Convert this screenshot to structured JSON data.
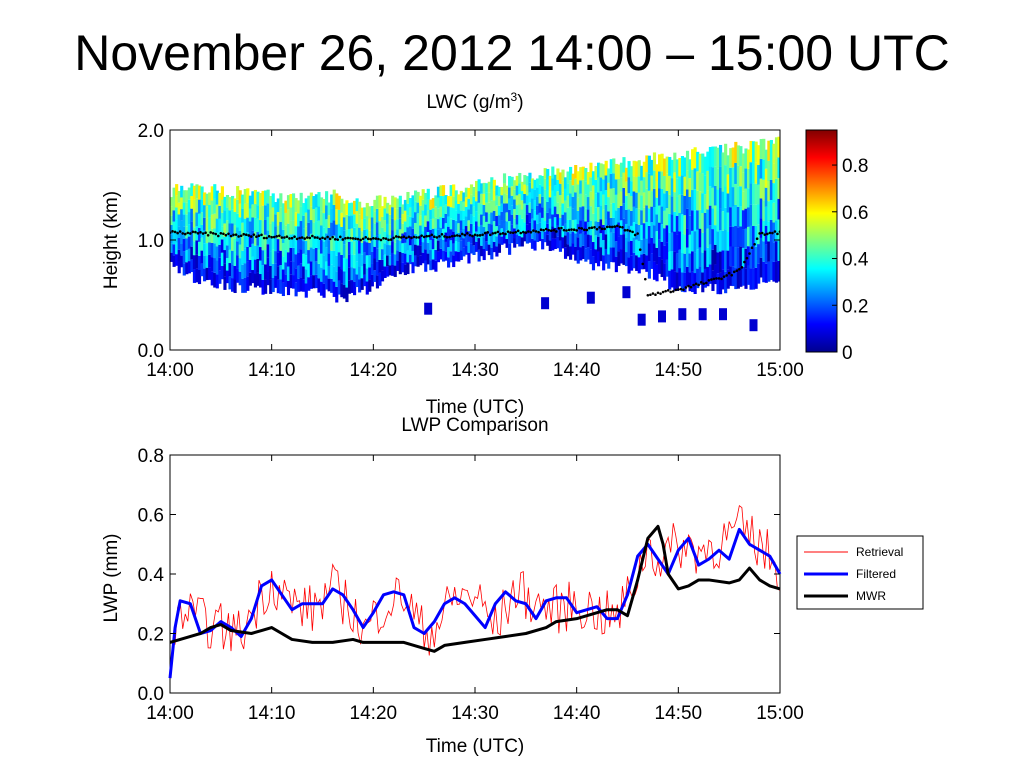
{
  "slide": {
    "title": "November 26, 2012 14:00 – 15:00 UTC"
  },
  "chart_data": [
    {
      "type": "heatmap",
      "title": "LWC (g/m3)",
      "title_main": "LWC (g/m",
      "title_sup": "3",
      "title_end": ")",
      "xlabel": "Time (UTC)",
      "ylabel": "Height (km)",
      "x_ticks": [
        "14:00",
        "14:10",
        "14:20",
        "14:30",
        "14:40",
        "14:50",
        "15:00"
      ],
      "y_ticks": [
        "0.0",
        "1.0",
        "2.0"
      ],
      "xlim": [
        0,
        60
      ],
      "ylim": [
        0,
        2
      ],
      "colorbar": {
        "ticks": [
          "0",
          "0.2",
          "0.4",
          "0.6",
          "0.8"
        ],
        "range": [
          0,
          0.95
        ],
        "colormap": "jet"
      },
      "cloud_top_km": [
        [
          0,
          1.45
        ],
        [
          2,
          1.48
        ],
        [
          5,
          1.45
        ],
        [
          8,
          1.42
        ],
        [
          12,
          1.38
        ],
        [
          16,
          1.4
        ],
        [
          18,
          1.35
        ],
        [
          21,
          1.35
        ],
        [
          24,
          1.4
        ],
        [
          27,
          1.45
        ],
        [
          30,
          1.5
        ],
        [
          33,
          1.55
        ],
        [
          36,
          1.6
        ],
        [
          39,
          1.62
        ],
        [
          42,
          1.68
        ],
        [
          45,
          1.72
        ],
        [
          48,
          1.75
        ],
        [
          51,
          1.78
        ],
        [
          54,
          1.82
        ],
        [
          57,
          1.85
        ],
        [
          60,
          1.9
        ]
      ],
      "cloud_base_km": [
        [
          0,
          0.75
        ],
        [
          3,
          0.62
        ],
        [
          6,
          0.58
        ],
        [
          9,
          0.55
        ],
        [
          12,
          0.52
        ],
        [
          15,
          0.5
        ],
        [
          17,
          0.47
        ],
        [
          19,
          0.55
        ],
        [
          22,
          0.7
        ],
        [
          25,
          0.75
        ],
        [
          28,
          0.8
        ],
        [
          31,
          0.85
        ],
        [
          34,
          0.95
        ],
        [
          37,
          0.95
        ],
        [
          40,
          0.8
        ],
        [
          43,
          0.75
        ],
        [
          45,
          0.75
        ],
        [
          47,
          0.7
        ],
        [
          49,
          0.6
        ],
        [
          52,
          0.55
        ],
        [
          55,
          0.55
        ],
        [
          58,
          0.6
        ],
        [
          60,
          0.6
        ]
      ],
      "mwr_base_km": [
        [
          0,
          1.07
        ],
        [
          5,
          1.05
        ],
        [
          10,
          1.03
        ],
        [
          15,
          1.02
        ],
        [
          20,
          1.01
        ],
        [
          25,
          1.03
        ],
        [
          30,
          1.05
        ],
        [
          35,
          1.08
        ],
        [
          40,
          1.1
        ],
        [
          44,
          1.12
        ],
        [
          46,
          1.05
        ],
        [
          47,
          0.5
        ],
        [
          50,
          0.55
        ],
        [
          53,
          0.62
        ],
        [
          56,
          0.72
        ],
        [
          58,
          1.05
        ],
        [
          60,
          1.07
        ]
      ]
    },
    {
      "type": "line",
      "title": "LWP Comparison",
      "xlabel": "Time (UTC)",
      "ylabel": "LWP (mm)",
      "x_ticks": [
        "14:00",
        "14:10",
        "14:20",
        "14:30",
        "14:40",
        "14:50",
        "15:00"
      ],
      "y_ticks": [
        "0.0",
        "0.2",
        "0.4",
        "0.6",
        "0.8"
      ],
      "xlim": [
        0,
        60
      ],
      "ylim": [
        0,
        0.8
      ],
      "legend": "right",
      "series": [
        {
          "name": "Retrieval",
          "color": "#ff0000",
          "points": [
            [
              0,
              0.05
            ],
            [
              1,
              0.28
            ],
            [
              3,
              0.24
            ],
            [
              5,
              0.22
            ],
            [
              7,
              0.2
            ],
            [
              9,
              0.33
            ],
            [
              10,
              0.38
            ],
            [
              12,
              0.3
            ],
            [
              14,
              0.28
            ],
            [
              16,
              0.35
            ],
            [
              18,
              0.28
            ],
            [
              19,
              0.2
            ],
            [
              21,
              0.3
            ],
            [
              23,
              0.33
            ],
            [
              25,
              0.2
            ],
            [
              26,
              0.22
            ],
            [
              28,
              0.32
            ],
            [
              30,
              0.33
            ],
            [
              32,
              0.22
            ],
            [
              34,
              0.35
            ],
            [
              36,
              0.3
            ],
            [
              38,
              0.28
            ],
            [
              40,
              0.3
            ],
            [
              42,
              0.27
            ],
            [
              44,
              0.25
            ],
            [
              46,
              0.4
            ],
            [
              47,
              0.5
            ],
            [
              48,
              0.45
            ],
            [
              50,
              0.5
            ],
            [
              52,
              0.48
            ],
            [
              54,
              0.5
            ],
            [
              56,
              0.55
            ],
            [
              58,
              0.5
            ],
            [
              60,
              0.42
            ]
          ]
        },
        {
          "name": "Filtered",
          "color": "#0000ff",
          "points": [
            [
              0,
              0.05
            ],
            [
              0.5,
              0.22
            ],
            [
              1,
              0.31
            ],
            [
              2,
              0.3
            ],
            [
              3,
              0.2
            ],
            [
              4,
              0.21
            ],
            [
              5,
              0.24
            ],
            [
              6,
              0.22
            ],
            [
              7,
              0.19
            ],
            [
              8,
              0.25
            ],
            [
              9,
              0.36
            ],
            [
              10,
              0.38
            ],
            [
              11,
              0.33
            ],
            [
              12,
              0.28
            ],
            [
              13,
              0.3
            ],
            [
              14,
              0.3
            ],
            [
              15,
              0.3
            ],
            [
              16,
              0.35
            ],
            [
              17,
              0.33
            ],
            [
              18,
              0.28
            ],
            [
              19,
              0.22
            ],
            [
              20,
              0.27
            ],
            [
              21,
              0.33
            ],
            [
              22,
              0.34
            ],
            [
              23,
              0.33
            ],
            [
              24,
              0.22
            ],
            [
              25,
              0.2
            ],
            [
              26,
              0.24
            ],
            [
              27,
              0.3
            ],
            [
              28,
              0.32
            ],
            [
              29,
              0.3
            ],
            [
              30,
              0.26
            ],
            [
              31,
              0.22
            ],
            [
              32,
              0.3
            ],
            [
              33,
              0.34
            ],
            [
              34,
              0.31
            ],
            [
              35,
              0.3
            ],
            [
              36,
              0.25
            ],
            [
              37,
              0.31
            ],
            [
              38,
              0.32
            ],
            [
              39,
              0.32
            ],
            [
              40,
              0.27
            ],
            [
              41,
              0.28
            ],
            [
              42,
              0.29
            ],
            [
              43,
              0.25
            ],
            [
              44,
              0.25
            ],
            [
              45,
              0.33
            ],
            [
              46,
              0.46
            ],
            [
              47,
              0.5
            ],
            [
              48,
              0.45
            ],
            [
              49,
              0.4
            ],
            [
              50,
              0.48
            ],
            [
              51,
              0.52
            ],
            [
              52,
              0.43
            ],
            [
              53,
              0.45
            ],
            [
              54,
              0.48
            ],
            [
              55,
              0.45
            ],
            [
              56,
              0.55
            ],
            [
              57,
              0.5
            ],
            [
              58,
              0.48
            ],
            [
              59,
              0.46
            ],
            [
              60,
              0.4
            ]
          ]
        },
        {
          "name": "MWR",
          "color": "#000000",
          "points": [
            [
              0,
              0.17
            ],
            [
              1,
              0.18
            ],
            [
              3,
              0.2
            ],
            [
              4,
              0.22
            ],
            [
              5,
              0.23
            ],
            [
              6,
              0.21
            ],
            [
              8,
              0.2
            ],
            [
              9,
              0.21
            ],
            [
              10,
              0.22
            ],
            [
              11,
              0.2
            ],
            [
              12,
              0.18
            ],
            [
              14,
              0.17
            ],
            [
              16,
              0.17
            ],
            [
              18,
              0.18
            ],
            [
              19,
              0.17
            ],
            [
              21,
              0.17
            ],
            [
              23,
              0.17
            ],
            [
              24,
              0.16
            ],
            [
              25,
              0.15
            ],
            [
              26,
              0.14
            ],
            [
              27,
              0.16
            ],
            [
              29,
              0.17
            ],
            [
              31,
              0.18
            ],
            [
              33,
              0.19
            ],
            [
              35,
              0.2
            ],
            [
              37,
              0.22
            ],
            [
              38,
              0.24
            ],
            [
              40,
              0.25
            ],
            [
              42,
              0.27
            ],
            [
              43,
              0.28
            ],
            [
              44,
              0.28
            ],
            [
              45,
              0.26
            ],
            [
              46,
              0.38
            ],
            [
              47,
              0.52
            ],
            [
              48,
              0.56
            ],
            [
              48.5,
              0.5
            ],
            [
              49,
              0.4
            ],
            [
              50,
              0.35
            ],
            [
              51,
              0.36
            ],
            [
              52,
              0.38
            ],
            [
              53,
              0.38
            ],
            [
              55,
              0.37
            ],
            [
              56,
              0.38
            ],
            [
              57,
              0.42
            ],
            [
              58,
              0.38
            ],
            [
              59,
              0.36
            ],
            [
              60,
              0.35
            ]
          ]
        }
      ]
    }
  ]
}
